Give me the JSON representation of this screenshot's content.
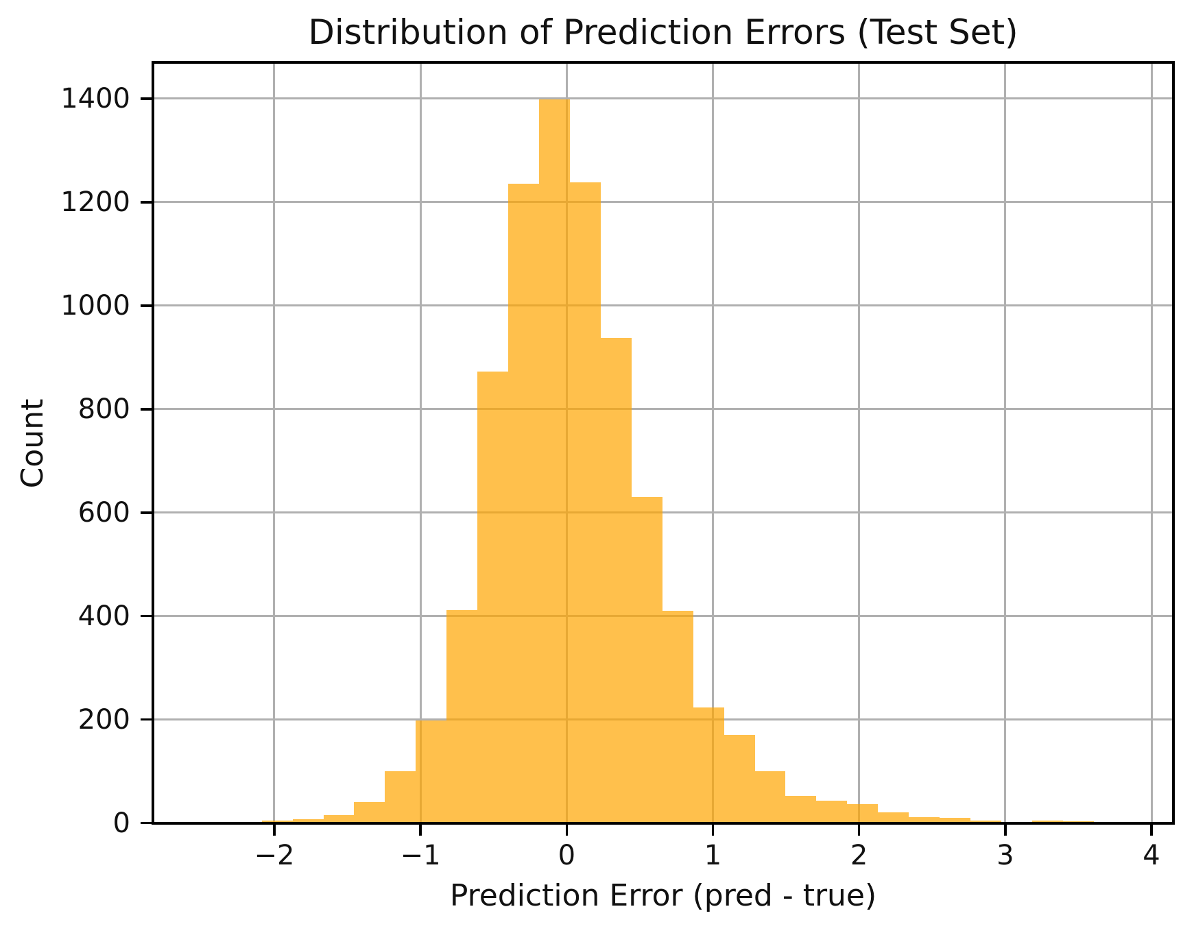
{
  "chart_data": {
    "type": "bar",
    "subtype": "histogram",
    "title": "Distribution of Prediction Errors (Test Set)",
    "xlabel": "Prediction Error (pred - true)",
    "ylabel": "Count",
    "bin_edges": [
      -2.086,
      -1.875,
      -1.664,
      -1.454,
      -1.243,
      -1.032,
      -0.821,
      -0.611,
      -0.4,
      -0.189,
      0.022,
      0.233,
      0.443,
      0.654,
      0.865,
      1.076,
      1.287,
      1.497,
      1.708,
      1.919,
      2.13,
      2.341,
      2.551,
      2.762,
      2.973,
      3.184,
      3.395,
      3.605
    ],
    "counts": [
      5,
      7,
      16,
      41,
      100,
      198,
      411,
      873,
      1235,
      1398,
      1238,
      938,
      630,
      410,
      224,
      171,
      100,
      53,
      43,
      37,
      21,
      12,
      10,
      5,
      2,
      5,
      3
    ],
    "xticks": [
      -2,
      -1,
      0,
      1,
      2,
      3,
      4
    ],
    "xtick_labels": [
      "−2",
      "−1",
      "0",
      "1",
      "2",
      "3",
      "4"
    ],
    "yticks": [
      0,
      200,
      400,
      600,
      800,
      1000,
      1200,
      1400
    ],
    "ytick_labels": [
      "0",
      "200",
      "400",
      "600",
      "800",
      "1000",
      "1200",
      "1400"
    ],
    "xlim": [
      -2.83,
      4.15
    ],
    "ylim": [
      0,
      1470
    ],
    "grid": true,
    "legend": "none",
    "colors": {
      "bar_fill_effective": "#fdbf4e",
      "bar_fill_rgba": "rgba(255,165,0,0.7)",
      "gridline": "#b0b0b0",
      "spine": "#000000",
      "background": "#ffffff",
      "text": "#111111"
    }
  }
}
